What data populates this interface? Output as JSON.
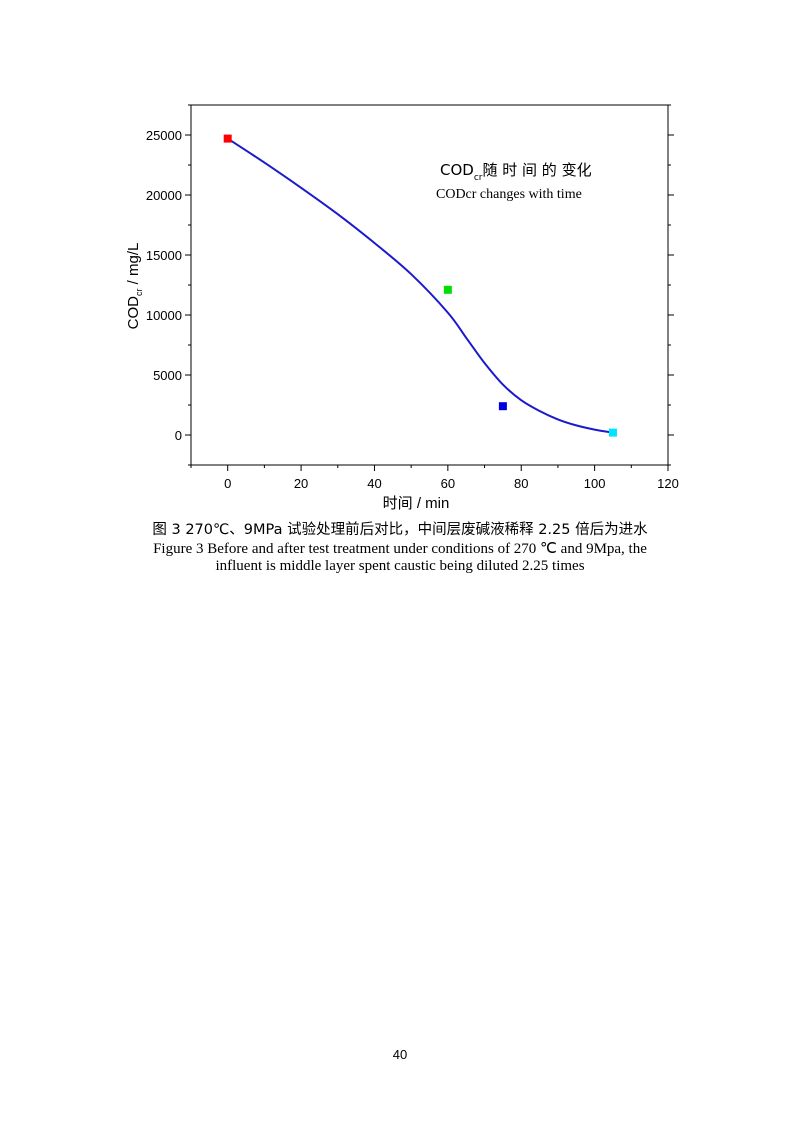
{
  "chart_data": {
    "type": "scatter",
    "xlabel": "时间 / min",
    "ylabel_main": "COD",
    "ylabel_sub": "cr",
    "ylabel_rest": " / mg/L",
    "xlim": [
      -10,
      120
    ],
    "ylim": [
      -2500,
      27500
    ],
    "xticks": [
      0,
      20,
      40,
      60,
      80,
      100,
      120
    ],
    "yticks": [
      0,
      5000,
      10000,
      15000,
      20000,
      25000
    ],
    "points": [
      {
        "x": 0,
        "y": 24700,
        "color": "#ff0000"
      },
      {
        "x": 60,
        "y": 12100,
        "color": "#00e000"
      },
      {
        "x": 75,
        "y": 2400,
        "color": "#0000e0"
      },
      {
        "x": 105,
        "y": 200,
        "color": "#00e5ff"
      }
    ],
    "fit_curve": {
      "color": "#1a1acc",
      "x": [
        0,
        10,
        20,
        30,
        40,
        50,
        60,
        65,
        70,
        75,
        80,
        85,
        90,
        95,
        100,
        105
      ],
      "y": [
        24700,
        22700,
        20600,
        18400,
        16000,
        13400,
        10200,
        8100,
        6000,
        4200,
        2900,
        2000,
        1300,
        800,
        450,
        200
      ]
    },
    "annotation": {
      "line1_main": "COD",
      "line1_sub": "cr",
      "line1_rest": "随 时 间 的 变化",
      "line2": "CODcr changes with time"
    },
    "grid": false,
    "legend": "none"
  },
  "caption": {
    "cn": "图 3  270℃、9MPa 试验处理前后对比，中间层废碱液稀释 2.25 倍后为进水",
    "en_line1": "Figure 3 Before and after test treatment under conditions of 270 ℃ and 9Mpa, the",
    "en_line2": "influent is middle layer spent caustic being diluted 2.25 times"
  },
  "page_number": "40"
}
